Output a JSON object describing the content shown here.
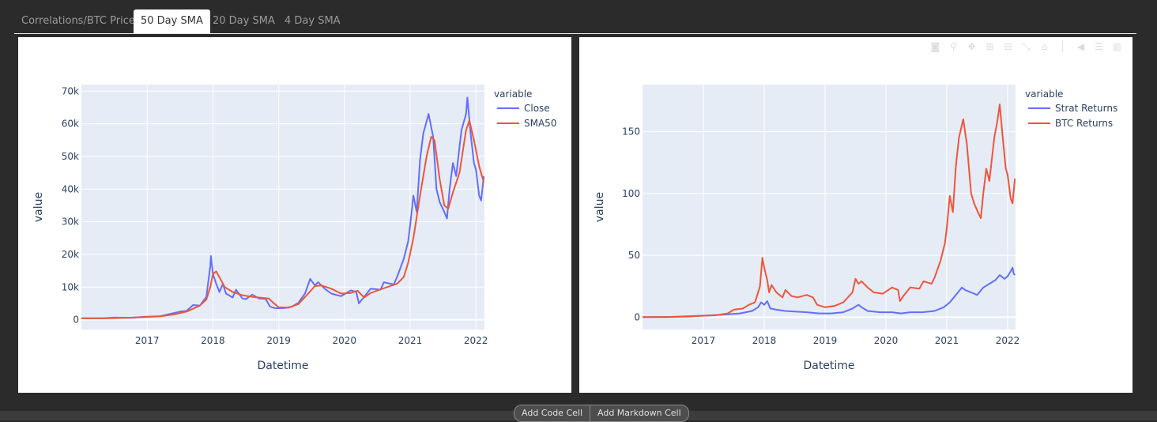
{
  "tabs": [
    {
      "label": "Correlations/BTC Price",
      "active": false
    },
    {
      "label": "50 Day SMA",
      "active": true
    },
    {
      "label": "20 Day SMA",
      "active": false
    },
    {
      "label": "4 Day SMA",
      "active": false
    }
  ],
  "toolbar": {
    "add_code": "Add Code Cell",
    "add_markdown": "Add Markdown Cell"
  },
  "modebar_icons": [
    "camera-icon",
    "zoom-icon",
    "pan-icon",
    "zoom-in-icon",
    "zoom-out-icon",
    "autoscale-icon",
    "reset-axes-icon",
    "spike-lines-icon",
    "hover-closest-icon",
    "hover-compare-icon",
    "plotly-logo-icon"
  ],
  "chart_data": [
    {
      "type": "line",
      "xlabel": "Datetime",
      "ylabel": "value",
      "legend_title": "variable",
      "legend_placement": "top-right",
      "x_ticks": [
        "2017",
        "2018",
        "2019",
        "2020",
        "2021",
        "2022"
      ],
      "y_ticks": [
        0,
        10000,
        20000,
        30000,
        40000,
        50000,
        60000,
        70000
      ],
      "y_tick_labels": [
        "0",
        "10k",
        "20k",
        "30k",
        "40k",
        "50k",
        "60k",
        "70k"
      ],
      "xlim": [
        2016.0,
        2022.13
      ],
      "ylim": [
        -3000,
        72000
      ],
      "grid": true,
      "series": [
        {
          "name": "Close",
          "color": "#636efa",
          "points": [
            [
              2016.0,
              430
            ],
            [
              2016.3,
              420
            ],
            [
              2016.5,
              650
            ],
            [
              2016.75,
              610
            ],
            [
              2016.95,
              900
            ],
            [
              2017.2,
              1100
            ],
            [
              2017.35,
              1800
            ],
            [
              2017.5,
              2500
            ],
            [
              2017.6,
              2700
            ],
            [
              2017.7,
              4500
            ],
            [
              2017.8,
              4300
            ],
            [
              2017.9,
              7000
            ],
            [
              2017.96,
              16500
            ],
            [
              2017.97,
              19500
            ],
            [
              2018.0,
              14000
            ],
            [
              2018.05,
              11000
            ],
            [
              2018.1,
              8500
            ],
            [
              2018.15,
              11000
            ],
            [
              2018.2,
              8000
            ],
            [
              2018.3,
              6800
            ],
            [
              2018.35,
              9200
            ],
            [
              2018.45,
              6500
            ],
            [
              2018.5,
              6300
            ],
            [
              2018.6,
              7700
            ],
            [
              2018.7,
              6500
            ],
            [
              2018.8,
              6400
            ],
            [
              2018.87,
              4000
            ],
            [
              2018.95,
              3500
            ],
            [
              2019.1,
              3600
            ],
            [
              2019.2,
              4000
            ],
            [
              2019.3,
              5200
            ],
            [
              2019.4,
              8000
            ],
            [
              2019.48,
              12500
            ],
            [
              2019.55,
              10500
            ],
            [
              2019.6,
              11500
            ],
            [
              2019.7,
              9500
            ],
            [
              2019.8,
              8000
            ],
            [
              2019.95,
              7200
            ],
            [
              2020.1,
              9000
            ],
            [
              2020.18,
              8500
            ],
            [
              2020.22,
              5000
            ],
            [
              2020.3,
              7000
            ],
            [
              2020.4,
              9500
            ],
            [
              2020.55,
              9200
            ],
            [
              2020.6,
              11500
            ],
            [
              2020.75,
              10800
            ],
            [
              2020.8,
              13000
            ],
            [
              2020.9,
              18500
            ],
            [
              2020.97,
              24000
            ],
            [
              2021.0,
              29000
            ],
            [
              2021.05,
              38000
            ],
            [
              2021.1,
              33000
            ],
            [
              2021.15,
              49000
            ],
            [
              2021.2,
              57000
            ],
            [
              2021.28,
              63000
            ],
            [
              2021.35,
              56000
            ],
            [
              2021.4,
              40000
            ],
            [
              2021.45,
              36000
            ],
            [
              2021.52,
              33000
            ],
            [
              2021.56,
              31000
            ],
            [
              2021.6,
              40000
            ],
            [
              2021.65,
              48000
            ],
            [
              2021.7,
              44000
            ],
            [
              2021.78,
              58000
            ],
            [
              2021.85,
              63000
            ],
            [
              2021.87,
              68000
            ],
            [
              2021.92,
              57000
            ],
            [
              2021.97,
              48000
            ],
            [
              2022.0,
              46000
            ],
            [
              2022.05,
              38000
            ],
            [
              2022.08,
              36500
            ],
            [
              2022.12,
              44000
            ]
          ]
        },
        {
          "name": "SMA50",
          "color": "#ef553b",
          "points": [
            [
              2016.0,
              430
            ],
            [
              2016.4,
              450
            ],
            [
              2016.75,
              620
            ],
            [
              2016.95,
              800
            ],
            [
              2017.2,
              1050
            ],
            [
              2017.4,
              1600
            ],
            [
              2017.6,
              2500
            ],
            [
              2017.8,
              4300
            ],
            [
              2017.9,
              6200
            ],
            [
              2017.96,
              10000
            ],
            [
              2018.0,
              14000
            ],
            [
              2018.05,
              14800
            ],
            [
              2018.1,
              13000
            ],
            [
              2018.18,
              10000
            ],
            [
              2018.3,
              8500
            ],
            [
              2018.45,
              7500
            ],
            [
              2018.6,
              7000
            ],
            [
              2018.75,
              6700
            ],
            [
              2018.85,
              6500
            ],
            [
              2018.92,
              5200
            ],
            [
              2019.0,
              3800
            ],
            [
              2019.15,
              3700
            ],
            [
              2019.3,
              4800
            ],
            [
              2019.45,
              8000
            ],
            [
              2019.55,
              10300
            ],
            [
              2019.65,
              10500
            ],
            [
              2019.8,
              9500
            ],
            [
              2019.95,
              8000
            ],
            [
              2020.1,
              8200
            ],
            [
              2020.2,
              8900
            ],
            [
              2020.3,
              6800
            ],
            [
              2020.4,
              8200
            ],
            [
              2020.55,
              9300
            ],
            [
              2020.65,
              10000
            ],
            [
              2020.8,
              11000
            ],
            [
              2020.9,
              13000
            ],
            [
              2020.97,
              17500
            ],
            [
              2021.05,
              25000
            ],
            [
              2021.15,
              38000
            ],
            [
              2021.25,
              50000
            ],
            [
              2021.32,
              56000
            ],
            [
              2021.37,
              55000
            ],
            [
              2021.45,
              43000
            ],
            [
              2021.52,
              35000
            ],
            [
              2021.58,
              34000
            ],
            [
              2021.65,
              39000
            ],
            [
              2021.75,
              45000
            ],
            [
              2021.85,
              58000
            ],
            [
              2021.9,
              61000
            ],
            [
              2021.97,
              55000
            ],
            [
              2022.05,
              47000
            ],
            [
              2022.12,
              42000
            ]
          ]
        }
      ]
    },
    {
      "type": "line",
      "xlabel": "Datetime",
      "ylabel": "value",
      "legend_title": "variable",
      "legend_placement": "top-right",
      "x_ticks": [
        "2017",
        "2018",
        "2019",
        "2020",
        "2021",
        "2022"
      ],
      "y_ticks": [
        0,
        50,
        100,
        150
      ],
      "y_tick_labels": [
        "0",
        "50",
        "100",
        "150"
      ],
      "xlim": [
        2016.0,
        2022.13
      ],
      "ylim": [
        -10,
        188
      ],
      "grid": true,
      "series": [
        {
          "name": "Strat Returns",
          "color": "#636efa",
          "points": [
            [
              2016.0,
              0
            ],
            [
              2016.5,
              0.3
            ],
            [
              2016.9,
              1
            ],
            [
              2017.3,
              2
            ],
            [
              2017.6,
              3
            ],
            [
              2017.8,
              5
            ],
            [
              2017.9,
              8
            ],
            [
              2017.95,
              12
            ],
            [
              2018.0,
              10
            ],
            [
              2018.05,
              13
            ],
            [
              2018.1,
              7
            ],
            [
              2018.2,
              6
            ],
            [
              2018.35,
              5
            ],
            [
              2018.5,
              4.5
            ],
            [
              2018.7,
              4
            ],
            [
              2018.9,
              3
            ],
            [
              2019.1,
              3
            ],
            [
              2019.3,
              4
            ],
            [
              2019.45,
              7
            ],
            [
              2019.55,
              10
            ],
            [
              2019.6,
              8
            ],
            [
              2019.7,
              5
            ],
            [
              2019.9,
              4
            ],
            [
              2020.1,
              4
            ],
            [
              2020.25,
              3
            ],
            [
              2020.4,
              4
            ],
            [
              2020.6,
              4
            ],
            [
              2020.8,
              5
            ],
            [
              2020.95,
              8
            ],
            [
              2021.05,
              12
            ],
            [
              2021.15,
              18
            ],
            [
              2021.25,
              24
            ],
            [
              2021.3,
              22
            ],
            [
              2021.4,
              20
            ],
            [
              2021.5,
              18
            ],
            [
              2021.6,
              24
            ],
            [
              2021.7,
              27
            ],
            [
              2021.8,
              30
            ],
            [
              2021.87,
              34
            ],
            [
              2021.95,
              31
            ],
            [
              2022.0,
              33
            ],
            [
              2022.05,
              37
            ],
            [
              2022.08,
              40
            ],
            [
              2022.1,
              35
            ],
            [
              2022.12,
              34
            ]
          ]
        },
        {
          "name": "BTC Returns",
          "color": "#ef553b",
          "points": [
            [
              2016.0,
              0
            ],
            [
              2016.4,
              0
            ],
            [
              2016.75,
              0.5
            ],
            [
              2016.95,
              1
            ],
            [
              2017.2,
              1.5
            ],
            [
              2017.4,
              3
            ],
            [
              2017.5,
              6
            ],
            [
              2017.65,
              7
            ],
            [
              2017.75,
              10
            ],
            [
              2017.85,
              12
            ],
            [
              2017.93,
              25
            ],
            [
              2017.97,
              48
            ],
            [
              2018.0,
              40
            ],
            [
              2018.05,
              30
            ],
            [
              2018.08,
              20
            ],
            [
              2018.12,
              26
            ],
            [
              2018.2,
              20
            ],
            [
              2018.3,
              16
            ],
            [
              2018.35,
              22
            ],
            [
              2018.45,
              17
            ],
            [
              2018.55,
              16
            ],
            [
              2018.7,
              18
            ],
            [
              2018.8,
              16
            ],
            [
              2018.87,
              10
            ],
            [
              2019.0,
              8
            ],
            [
              2019.15,
              9
            ],
            [
              2019.3,
              12
            ],
            [
              2019.45,
              20
            ],
            [
              2019.5,
              31
            ],
            [
              2019.55,
              27
            ],
            [
              2019.6,
              29
            ],
            [
              2019.7,
              24
            ],
            [
              2019.8,
              20
            ],
            [
              2019.95,
              19
            ],
            [
              2020.1,
              24
            ],
            [
              2020.2,
              22
            ],
            [
              2020.23,
              13
            ],
            [
              2020.3,
              18
            ],
            [
              2020.4,
              24
            ],
            [
              2020.55,
              23
            ],
            [
              2020.62,
              29
            ],
            [
              2020.75,
              27
            ],
            [
              2020.8,
              32
            ],
            [
              2020.9,
              46
            ],
            [
              2020.97,
              60
            ],
            [
              2021.0,
              72
            ],
            [
              2021.05,
              98
            ],
            [
              2021.1,
              85
            ],
            [
              2021.15,
              122
            ],
            [
              2021.2,
              145
            ],
            [
              2021.27,
              160
            ],
            [
              2021.33,
              140
            ],
            [
              2021.4,
              100
            ],
            [
              2021.45,
              92
            ],
            [
              2021.52,
              84
            ],
            [
              2021.56,
              80
            ],
            [
              2021.6,
              100
            ],
            [
              2021.65,
              120
            ],
            [
              2021.7,
              110
            ],
            [
              2021.78,
              145
            ],
            [
              2021.83,
              158
            ],
            [
              2021.87,
              172
            ],
            [
              2021.92,
              145
            ],
            [
              2021.97,
              120
            ],
            [
              2022.0,
              115
            ],
            [
              2022.05,
              96
            ],
            [
              2022.08,
              92
            ],
            [
              2022.12,
              112
            ]
          ]
        }
      ]
    }
  ]
}
